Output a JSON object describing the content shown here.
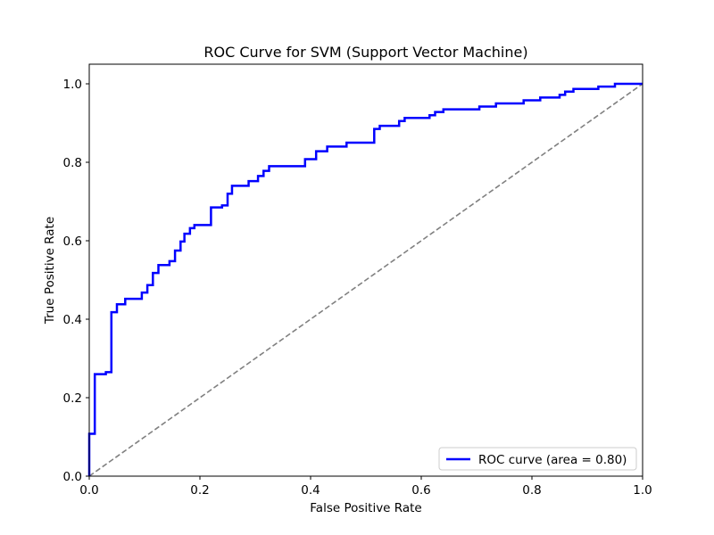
{
  "chart_data": {
    "type": "line",
    "title": "ROC Curve for SVM (Support Vector Machine)",
    "xlabel": "False Positive Rate",
    "ylabel": "True Positive Rate",
    "xlim": [
      0.0,
      1.0
    ],
    "ylim": [
      0.0,
      1.05
    ],
    "xticks": [
      0.0,
      0.2,
      0.4,
      0.6,
      0.8,
      1.0
    ],
    "yticks": [
      0.0,
      0.2,
      0.4,
      0.6,
      0.8,
      1.0
    ],
    "xtick_labels": [
      "0.0",
      "0.2",
      "0.4",
      "0.6",
      "0.8",
      "1.0"
    ],
    "ytick_labels": [
      "0.0",
      "0.2",
      "0.4",
      "0.6",
      "0.8",
      "1.0"
    ],
    "grid": false,
    "legend_position": "lower-right",
    "series": [
      {
        "name": "ROC curve (area = 0.80)",
        "color": "#0000ff",
        "style": "solid",
        "x": [
          0.0,
          0.0,
          0.01,
          0.01,
          0.03,
          0.03,
          0.04,
          0.04,
          0.05,
          0.05,
          0.065,
          0.065,
          0.095,
          0.095,
          0.105,
          0.105,
          0.115,
          0.115,
          0.125,
          0.125,
          0.145,
          0.145,
          0.155,
          0.155,
          0.165,
          0.165,
          0.172,
          0.172,
          0.182,
          0.182,
          0.19,
          0.19,
          0.22,
          0.22,
          0.24,
          0.24,
          0.25,
          0.25,
          0.258,
          0.258,
          0.288,
          0.288,
          0.305,
          0.305,
          0.315,
          0.315,
          0.325,
          0.325,
          0.39,
          0.39,
          0.41,
          0.41,
          0.43,
          0.43,
          0.465,
          0.465,
          0.515,
          0.515,
          0.525,
          0.525,
          0.56,
          0.56,
          0.57,
          0.57,
          0.615,
          0.615,
          0.625,
          0.625,
          0.64,
          0.64,
          0.705,
          0.705,
          0.735,
          0.735,
          0.785,
          0.785,
          0.815,
          0.815,
          0.85,
          0.85,
          0.86,
          0.86,
          0.875,
          0.875,
          0.92,
          0.92,
          0.95,
          0.95,
          1.0
        ],
        "y": [
          0.0,
          0.108,
          0.108,
          0.26,
          0.26,
          0.265,
          0.265,
          0.418,
          0.418,
          0.438,
          0.438,
          0.452,
          0.452,
          0.468,
          0.468,
          0.487,
          0.487,
          0.518,
          0.518,
          0.538,
          0.538,
          0.548,
          0.548,
          0.575,
          0.575,
          0.598,
          0.598,
          0.618,
          0.618,
          0.632,
          0.632,
          0.64,
          0.64,
          0.685,
          0.685,
          0.69,
          0.69,
          0.72,
          0.72,
          0.74,
          0.74,
          0.752,
          0.752,
          0.765,
          0.765,
          0.778,
          0.778,
          0.79,
          0.79,
          0.808,
          0.808,
          0.828,
          0.828,
          0.84,
          0.84,
          0.85,
          0.85,
          0.885,
          0.885,
          0.893,
          0.893,
          0.905,
          0.905,
          0.913,
          0.913,
          0.92,
          0.92,
          0.928,
          0.928,
          0.935,
          0.935,
          0.942,
          0.942,
          0.95,
          0.95,
          0.958,
          0.958,
          0.965,
          0.965,
          0.972,
          0.972,
          0.98,
          0.98,
          0.987,
          0.987,
          0.993,
          0.993,
          1.0,
          1.0
        ]
      },
      {
        "name": "",
        "color": "#808080",
        "style": "dashed",
        "x": [
          0.0,
          1.0
        ],
        "y": [
          0.0,
          1.0
        ]
      }
    ]
  }
}
